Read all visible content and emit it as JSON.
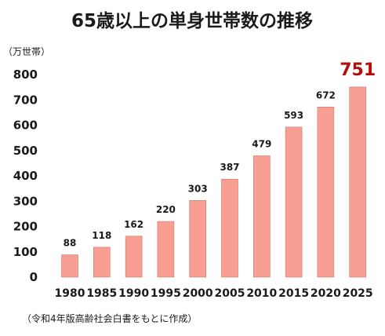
{
  "chart_data": {
    "type": "bar",
    "title": "65歳以上の単身世帯数の推移",
    "unit_label": "（万世帯）",
    "categories": [
      "1980",
      "1985",
      "1990",
      "1995",
      "2000",
      "2005",
      "2010",
      "2015",
      "2020",
      "2025"
    ],
    "values": [
      88,
      118,
      162,
      220,
      303,
      387,
      479,
      593,
      672,
      751
    ],
    "value_labels": [
      "88",
      "118",
      "162",
      "220",
      "303",
      "387",
      "479",
      "593",
      "672",
      "751"
    ],
    "highlight_index": 9,
    "ylim": [
      0,
      800
    ],
    "yticks": [
      0,
      100,
      200,
      300,
      400,
      500,
      600,
      700,
      800
    ],
    "ytick_labels": [
      "0",
      "100",
      "200",
      "300",
      "400",
      "500",
      "600",
      "700",
      "800"
    ],
    "grid": false,
    "legend": "none",
    "source": "（令和4年版高齢社会白書をもとに作成）"
  },
  "colors": {
    "bar_fill": "#f89e92",
    "bar_stroke": "#c97a70",
    "highlight_text": "#b40d0d",
    "text": "#1a1a1a"
  }
}
